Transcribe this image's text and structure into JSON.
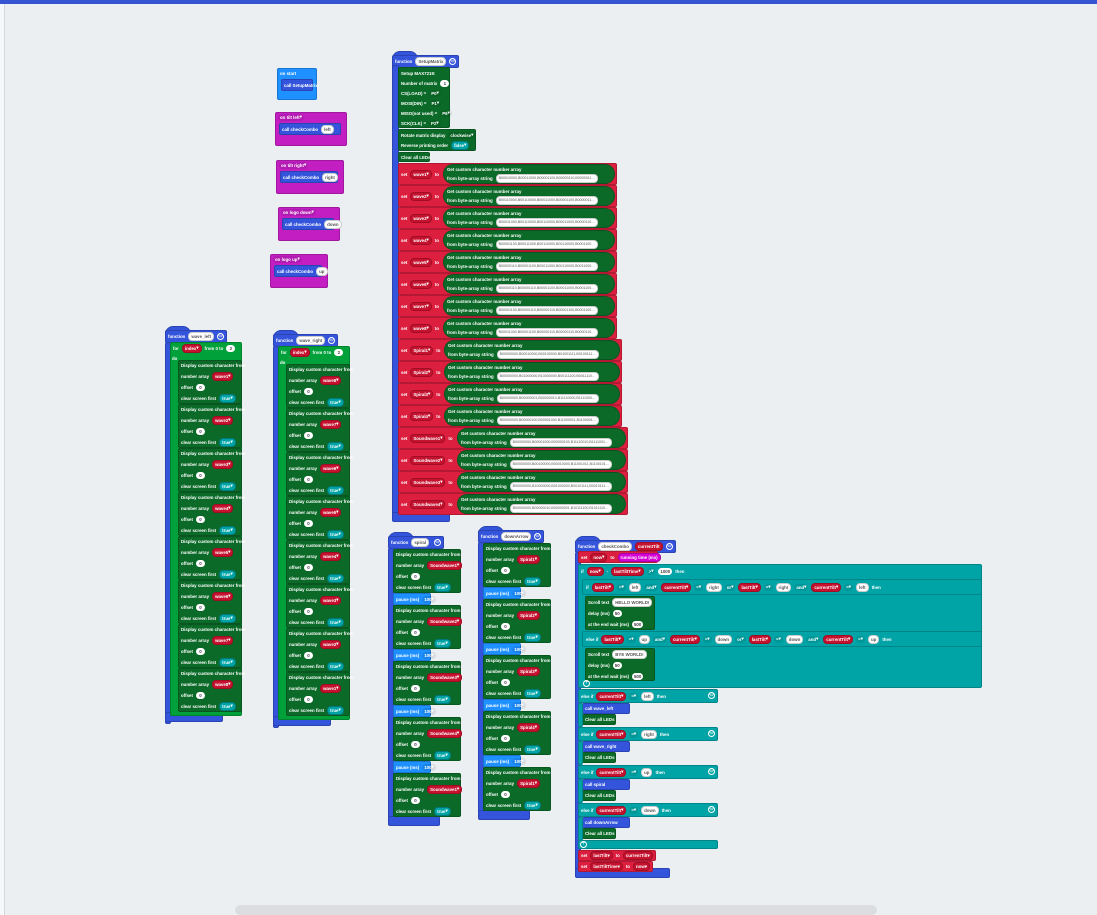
{
  "colors": {
    "function": "#3455db",
    "event_start": "#1e90ff",
    "event_input": "#c21ec2",
    "matrix": "#0b6a28",
    "variable": "#dc1f3f",
    "logic": "#00a4a6",
    "pause": "#1e90ff",
    "call": "#3455db",
    "workspace": "#eceff1",
    "accent_bar": "#3454d1"
  },
  "events": [
    {
      "hat": "on start",
      "call": "call SetupMatrix"
    },
    {
      "hat": "on tilt left",
      "call": "call checkCombo",
      "arg": "left"
    },
    {
      "hat": "on tilt right",
      "call": "call checkCombo",
      "arg": "right"
    },
    {
      "hat": "on logo down",
      "call": "call checkCombo",
      "arg": "down"
    },
    {
      "hat": "on logo up",
      "call": "call checkCombo",
      "arg": "up"
    }
  ],
  "labels": {
    "function": "function",
    "set": "set",
    "to": "to",
    "get": "Get custom character number array",
    "from": "from byte-array string",
    "clear": "Clear all LEDs",
    "d1": "Display custom character from",
    "d2": "number array",
    "d3": "offset",
    "d4": "clear screen first",
    "offset": "0",
    "true": "true",
    "pause": "pause (ms)",
    "pause_val": "100",
    "do": "do"
  },
  "setup": {
    "name": "SetupMatrix",
    "lines": [
      [
        {
          "txt": "Setup MAX7219:"
        }
      ],
      [
        {
          "txt": "Number of matrix"
        },
        {
          "num": "1"
        }
      ],
      [
        {
          "txt": "CS(LOAD) ="
        },
        {
          "drop": "P0"
        }
      ],
      [
        {
          "txt": "MOSI(DIN) ="
        },
        {
          "drop": "P1"
        }
      ],
      [
        {
          "txt": "MISO(not used) ="
        },
        {
          "drop": "P6"
        }
      ],
      [
        {
          "txt": "SCK(CLK) ="
        },
        {
          "drop": "P2"
        }
      ]
    ],
    "rotate": [
      {
        "txt": "Rotate matrix display"
      },
      {
        "drop": "clockwise"
      }
    ],
    "reverse": [
      {
        "txt": "Reverse printing order"
      },
      {
        "bool": "false"
      }
    ],
    "sets": [
      {
        "var": "wave1",
        "value": "B00010000,B00011000,B00001100,B00000110,B0000011…"
      },
      {
        "var": "wave2",
        "value": "B00110000,B00110000,B00011000,B00001100,B0000011…"
      },
      {
        "var": "wave3",
        "value": "B00011000,B00110000,B00110000,B00011000,B0000110…"
      },
      {
        "var": "wave4",
        "value": "B00001100,B00011000,B00110000,B00110000,B0001100…"
      },
      {
        "var": "wave5",
        "value": "B00000110,B00001100,B00011000,B00110000,B0011000…"
      },
      {
        "var": "wave6",
        "value": "B00000110,B00000110,B00001100,B00011000,B0001100…"
      },
      {
        "var": "wave7",
        "value": "B00001100,B00000110,B00000110,B00001100,B0001100…"
      },
      {
        "var": "wave8",
        "value": "B00011000,B00001100,B00000110,B00000110,B0000110…"
      },
      {
        "var": "Spiral1",
        "value": "B00000000,B00010000,B00100000,B01001111,B0100111…"
      },
      {
        "var": "Spiral2",
        "value": "B00000000,B01000000,B10000000,B00111100,B0011110…"
      },
      {
        "var": "Spiral3",
        "value": "B00000000,B00000001,B00000010,B11110000,B1111000…"
      },
      {
        "var": "Spiral4",
        "value": "B00000000,B00000100,B00001000,B11000011,B1100001…"
      },
      {
        "var": "Soundwave1",
        "value": "B00000000,B00001000,B00000100,B11110010,B1111001…"
      },
      {
        "var": "Soundwave2",
        "value": "B00000000,B00100000,B00010000,B11001011,B1100101…"
      },
      {
        "var": "Soundwave3",
        "value": "B00000000,B10000000,B01000000,B00101111,B0010111…"
      },
      {
        "var": "Soundwave4",
        "value": "B00000000,B00000010,B00000001,B10111100,B1011110…"
      }
    ]
  },
  "wave_left": {
    "name": "wave_left",
    "for": [
      {
        "txt": "for"
      },
      {
        "var": "index"
      },
      {
        "txt": "from 0 to"
      },
      {
        "num": "2"
      }
    ],
    "arrays": [
      "wave1",
      "wave2",
      "wave3",
      "wave4",
      "wave5",
      "wave6",
      "wave7",
      "wave8"
    ]
  },
  "wave_right": {
    "name": "wave_right",
    "for": [
      {
        "txt": "for"
      },
      {
        "var": "index"
      },
      {
        "txt": "from 0 to"
      },
      {
        "num": "2"
      }
    ],
    "arrays": [
      "wave8",
      "wave7",
      "wave6",
      "wave5",
      "wave4",
      "wave3",
      "wave2",
      "wave1"
    ]
  },
  "spiral": {
    "name": "spiral",
    "arrays": [
      "Soundwave1",
      "Soundwave2",
      "Soundwave3",
      "Soundwave4",
      "Soundwave1"
    ]
  },
  "downArrow": {
    "name": "downArrow",
    "arrays": [
      "Spiral1",
      "Spiral2",
      "Spiral3",
      "Spiral4",
      "Spiral1"
    ]
  },
  "checkCombo": {
    "name": "checkCombo",
    "param": "currentTilt",
    "set_now": [
      {
        "txt": "set"
      },
      {
        "var": "now"
      },
      {
        "txt": "to"
      },
      {
        "fn": "running time (ms)"
      }
    ],
    "if_time": [
      {
        "txt": "if"
      },
      {
        "var": "now"
      },
      {
        "txt": "-"
      },
      {
        "var": "lastTiltTime"
      },
      {
        "drop": ">"
      },
      {
        "num": "1000"
      },
      {
        "txt": "then"
      }
    ],
    "if_combo": [
      {
        "txt": "if"
      },
      {
        "var": "lastTilt"
      },
      {
        "drop": "="
      },
      {
        "str": "left"
      },
      {
        "drop": "and"
      },
      {
        "var": "currentTilt"
      },
      {
        "drop": "="
      },
      {
        "str": "right"
      },
      {
        "drop": "or"
      },
      {
        "var": "lastTilt"
      },
      {
        "drop": "="
      },
      {
        "str": "right"
      },
      {
        "drop": "and"
      },
      {
        "var": "currentTilt"
      },
      {
        "drop": "="
      },
      {
        "str": "left"
      },
      {
        "txt": "then"
      }
    ],
    "scroll1": [
      [
        {
          "txt": "Scroll text"
        },
        {
          "str": "HELLO WORLD!"
        }
      ],
      [
        {
          "txt": "delay (ms)"
        },
        {
          "num": "50"
        }
      ],
      [
        {
          "txt": "at the end wait (ms)"
        },
        {
          "num": "500"
        }
      ]
    ],
    "elseif_combo": [
      {
        "txt": "else if"
      },
      {
        "var": "lastTilt"
      },
      {
        "drop": "="
      },
      {
        "str": "up"
      },
      {
        "drop": "and"
      },
      {
        "var": "currentTilt"
      },
      {
        "drop": "="
      },
      {
        "str": "down"
      },
      {
        "drop": "or"
      },
      {
        "var": "lastTilt"
      },
      {
        "drop": "="
      },
      {
        "str": "down"
      },
      {
        "drop": "and"
      },
      {
        "var": "currentTilt"
      },
      {
        "drop": "="
      },
      {
        "str": "up"
      },
      {
        "txt": "then"
      }
    ],
    "scroll2": [
      [
        {
          "txt": "Scroll text"
        },
        {
          "str": "BYE WORLD!"
        }
      ],
      [
        {
          "txt": "delay (ms)"
        },
        {
          "num": "50"
        }
      ],
      [
        {
          "txt": "at the end wait (ms)"
        },
        {
          "num": "500"
        }
      ]
    ],
    "branches": [
      {
        "cond": [
          {
            "txt": "else if"
          },
          {
            "var": "currentTilt"
          },
          {
            "drop": "="
          },
          {
            "str": "left"
          },
          {
            "txt": "then"
          }
        ],
        "call": "call wave_left"
      },
      {
        "cond": [
          {
            "txt": "else if"
          },
          {
            "var": "currentTilt"
          },
          {
            "drop": "="
          },
          {
            "str": "right"
          },
          {
            "txt": "then"
          }
        ],
        "call": "call wave_right"
      },
      {
        "cond": [
          {
            "txt": "else if"
          },
          {
            "var": "currentTilt"
          },
          {
            "drop": "="
          },
          {
            "str": "up"
          },
          {
            "txt": "then"
          }
        ],
        "call": "call spiral"
      },
      {
        "cond": [
          {
            "txt": "else if"
          },
          {
            "var": "currentTilt"
          },
          {
            "drop": "="
          },
          {
            "str": "down"
          },
          {
            "txt": "then"
          }
        ],
        "call": "call downArrow"
      }
    ],
    "set_last": [
      {
        "txt": "set"
      },
      {
        "var": "lastTilt"
      },
      {
        "txt": "to"
      },
      {
        "var": "currentTilt"
      }
    ],
    "set_time": [
      {
        "txt": "set"
      },
      {
        "var": "lastTiltTime"
      },
      {
        "txt": "to"
      },
      {
        "var": "now"
      }
    ]
  }
}
